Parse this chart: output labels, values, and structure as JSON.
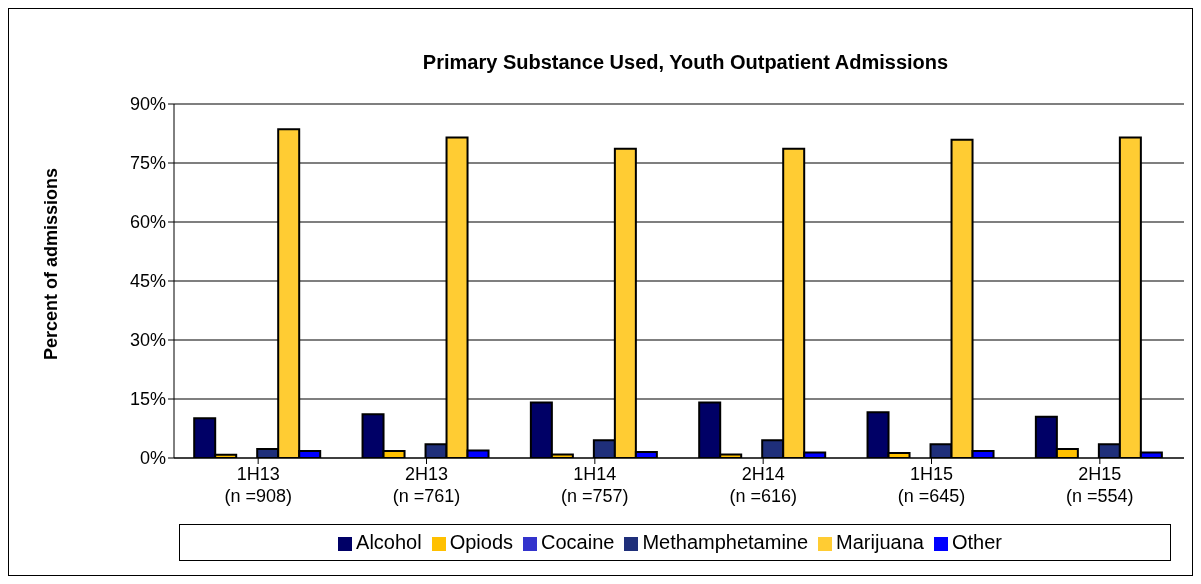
{
  "chart_data": {
    "type": "bar",
    "title": "Primary Substance Used, Youth Outpatient Admissions",
    "ylabel": "Percent of admissions",
    "categories": [
      "1H13\n(n =908)",
      "2H13\n(n =761)",
      "1H14\n(n =757)",
      "2H14\n(n =616)",
      "1H15\n(n =645)",
      "2H15\n(n =554)"
    ],
    "series": [
      {
        "name": "Alcohol",
        "color": "#000066",
        "values": [
          10.1,
          11.1,
          14.1,
          14.1,
          11.6,
          10.5
        ]
      },
      {
        "name": "Opiods",
        "color": "#ffc000",
        "values": [
          0.8,
          1.8,
          0.9,
          0.9,
          1.3,
          2.3
        ]
      },
      {
        "name": "Cocaine",
        "color": "#3333cc",
        "values": [
          0,
          0,
          0,
          0,
          0,
          0
        ]
      },
      {
        "name": "Methamphetamine",
        "color": "#1f2f7a",
        "values": [
          2.3,
          3.5,
          4.5,
          4.5,
          3.5,
          3.5
        ]
      },
      {
        "name": "Marijuana",
        "color": "#ffcc33",
        "values": [
          83.6,
          81.5,
          78.6,
          78.6,
          80.9,
          81.5
        ]
      },
      {
        "name": "Other",
        "color": "#0000ff",
        "values": [
          1.8,
          1.9,
          1.5,
          1.4,
          1.8,
          1.4
        ]
      }
    ],
    "ylim": [
      0,
      90
    ],
    "yticks": [
      {
        "value": 0,
        "label": "0%"
      },
      {
        "value": 15,
        "label": "15%"
      },
      {
        "value": 30,
        "label": "30%"
      },
      {
        "value": 45,
        "label": "45%"
      },
      {
        "value": 60,
        "label": "60%"
      },
      {
        "value": 75,
        "label": "75%"
      },
      {
        "value": 90,
        "label": "90%"
      }
    ],
    "grid": "y",
    "legend": "bottom"
  }
}
